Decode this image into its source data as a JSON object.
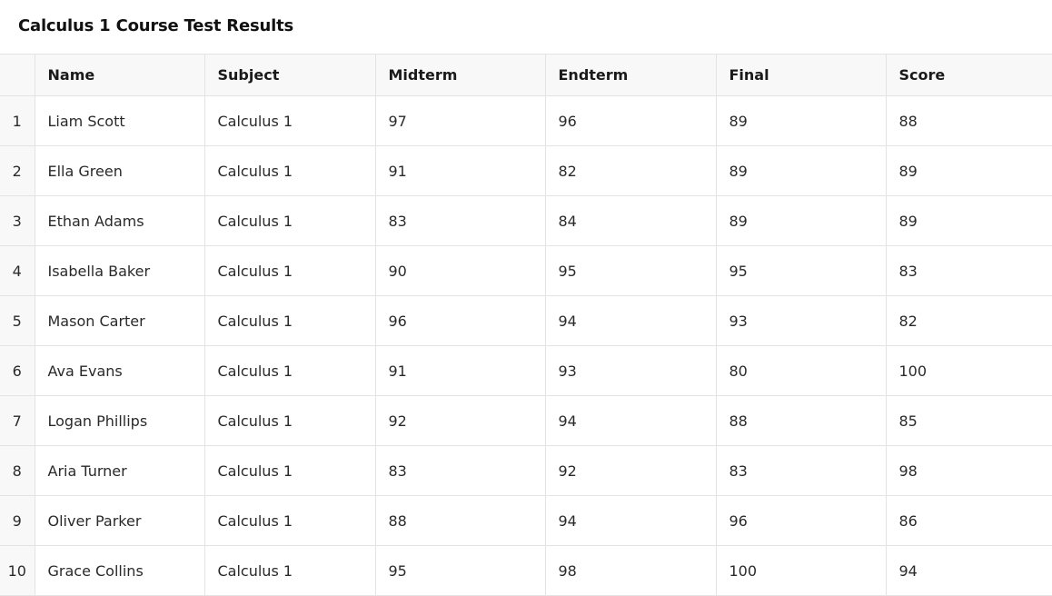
{
  "page": {
    "title": "Calculus 1 Course Test Results"
  },
  "table": {
    "columns": [
      "",
      "Name",
      "Subject",
      "Midterm",
      "Endterm",
      "Final",
      "Score"
    ],
    "rows": [
      {
        "index": "1",
        "name": "Liam Scott",
        "subject": "Calculus 1",
        "midterm": "97",
        "endterm": "96",
        "final": "89",
        "score": "88"
      },
      {
        "index": "2",
        "name": "Ella Green",
        "subject": "Calculus 1",
        "midterm": "91",
        "endterm": "82",
        "final": "89",
        "score": "89"
      },
      {
        "index": "3",
        "name": "Ethan Adams",
        "subject": "Calculus 1",
        "midterm": "83",
        "endterm": "84",
        "final": "89",
        "score": "89"
      },
      {
        "index": "4",
        "name": "Isabella Baker",
        "subject": "Calculus 1",
        "midterm": "90",
        "endterm": "95",
        "final": "95",
        "score": "83"
      },
      {
        "index": "5",
        "name": "Mason Carter",
        "subject": "Calculus 1",
        "midterm": "96",
        "endterm": "94",
        "final": "93",
        "score": "82"
      },
      {
        "index": "6",
        "name": "Ava Evans",
        "subject": "Calculus 1",
        "midterm": "91",
        "endterm": "93",
        "final": "80",
        "score": "100"
      },
      {
        "index": "7",
        "name": "Logan Phillips",
        "subject": "Calculus 1",
        "midterm": "92",
        "endterm": "94",
        "final": "88",
        "score": "85"
      },
      {
        "index": "8",
        "name": "Aria Turner",
        "subject": "Calculus 1",
        "midterm": "83",
        "endterm": "92",
        "final": "83",
        "score": "98"
      },
      {
        "index": "9",
        "name": "Oliver Parker",
        "subject": "Calculus 1",
        "midterm": "88",
        "endterm": "94",
        "final": "96",
        "score": "86"
      },
      {
        "index": "10",
        "name": "Grace Collins",
        "subject": "Calculus 1",
        "midterm": "95",
        "endterm": "98",
        "final": "100",
        "score": "94"
      }
    ]
  }
}
